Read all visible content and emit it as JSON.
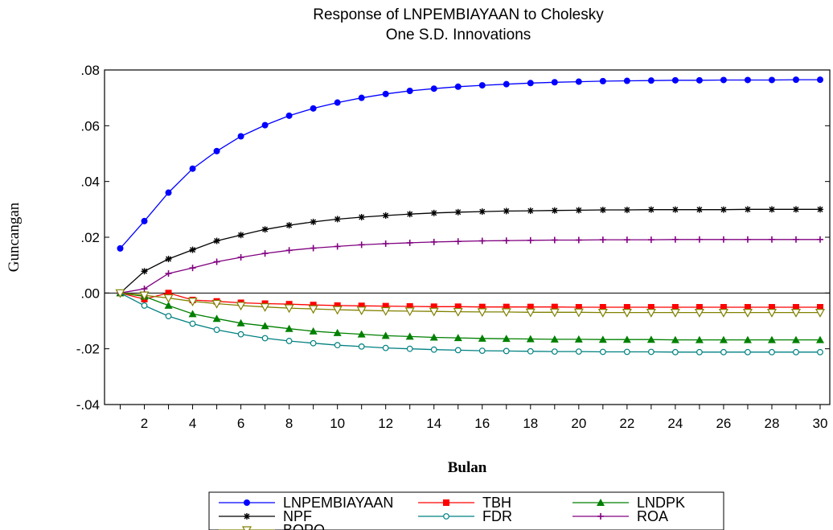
{
  "chart_data": {
    "type": "line",
    "title": [
      "Response of LNPEMBIAYAAN to Cholesky",
      "One S.D. Innovations"
    ],
    "xlabel": "Bulan",
    "ylabel": "Guncangan",
    "xlim": [
      1,
      30
    ],
    "ylim": [
      -0.04,
      0.08
    ],
    "x_ticks": [
      2,
      4,
      6,
      8,
      10,
      12,
      14,
      16,
      18,
      20,
      22,
      24,
      26,
      28,
      30
    ],
    "y_ticks": [
      {
        "value": 0.08,
        "label": ".08"
      },
      {
        "value": 0.06,
        "label": ".06"
      },
      {
        "value": 0.04,
        "label": ".04"
      },
      {
        "value": 0.02,
        "label": ".02"
      },
      {
        "value": 0.0,
        "label": ".00"
      },
      {
        "value": -0.02,
        "label": "-.02"
      },
      {
        "value": -0.04,
        "label": "-.04"
      }
    ],
    "zero_line": true,
    "grid": false,
    "legend_position": "bottom",
    "x": [
      1,
      2,
      3,
      4,
      5,
      6,
      7,
      8,
      9,
      10,
      11,
      12,
      13,
      14,
      15,
      16,
      17,
      18,
      19,
      20,
      21,
      22,
      23,
      24,
      25,
      26,
      27,
      28,
      29,
      30
    ],
    "series": [
      {
        "name": "LNPEMBIAYAAN",
        "color": "#0000ff",
        "marker": "circle-filled",
        "values": [
          0.016,
          0.0258,
          0.036,
          0.0446,
          0.0509,
          0.0562,
          0.0602,
          0.0636,
          0.0662,
          0.0683,
          0.07,
          0.0714,
          0.0725,
          0.0733,
          0.074,
          0.0745,
          0.0749,
          0.0753,
          0.0756,
          0.0758,
          0.076,
          0.0761,
          0.0762,
          0.0763,
          0.0763,
          0.0764,
          0.0764,
          0.0764,
          0.0765,
          0.0765
        ]
      },
      {
        "name": "TBH",
        "color": "#ff0000",
        "marker": "square-filled",
        "values": [
          0.0,
          -0.0022,
          0.0,
          -0.0025,
          -0.003,
          -0.0035,
          -0.0038,
          -0.004,
          -0.0043,
          -0.0045,
          -0.0046,
          -0.0047,
          -0.0048,
          -0.0049,
          -0.0049,
          -0.005,
          -0.005,
          -0.005,
          -0.005,
          -0.0051,
          -0.0051,
          -0.0051,
          -0.0051,
          -0.0051,
          -0.0051,
          -0.0051,
          -0.0051,
          -0.0051,
          -0.0051,
          -0.0051
        ]
      },
      {
        "name": "LNDPK",
        "color": "#008000",
        "marker": "triangle-filled",
        "values": [
          0.0,
          -0.0012,
          -0.0045,
          -0.0075,
          -0.0092,
          -0.0108,
          -0.0118,
          -0.0128,
          -0.0137,
          -0.0143,
          -0.0148,
          -0.0153,
          -0.0156,
          -0.0159,
          -0.0161,
          -0.0163,
          -0.0164,
          -0.0165,
          -0.0166,
          -0.0166,
          -0.0167,
          -0.0167,
          -0.0167,
          -0.0168,
          -0.0168,
          -0.0168,
          -0.0168,
          -0.0168,
          -0.0168,
          -0.0168
        ]
      },
      {
        "name": "NPF",
        "color": "#000000",
        "marker": "asterisk",
        "values": [
          0.0,
          0.0078,
          0.0122,
          0.0155,
          0.0187,
          0.0208,
          0.0228,
          0.0243,
          0.0255,
          0.0265,
          0.0272,
          0.0278,
          0.0283,
          0.0287,
          0.029,
          0.0292,
          0.0294,
          0.0295,
          0.0296,
          0.0297,
          0.0298,
          0.0298,
          0.0299,
          0.0299,
          0.0299,
          0.0299,
          0.03,
          0.03,
          0.03,
          0.03
        ]
      },
      {
        "name": "FDR",
        "color": "#008080",
        "marker": "circle-open",
        "values": [
          0.0,
          -0.0045,
          -0.0083,
          -0.011,
          -0.0132,
          -0.0148,
          -0.0162,
          -0.0172,
          -0.018,
          -0.0187,
          -0.0192,
          -0.0197,
          -0.02,
          -0.0203,
          -0.0205,
          -0.0207,
          -0.0208,
          -0.0209,
          -0.021,
          -0.021,
          -0.0211,
          -0.0211,
          -0.0211,
          -0.0212,
          -0.0212,
          -0.0212,
          -0.0212,
          -0.0212,
          -0.0212,
          -0.0212
        ]
      },
      {
        "name": "ROA",
        "color": "#800080",
        "marker": "plus",
        "values": [
          0.0,
          0.0015,
          0.007,
          0.009,
          0.0112,
          0.0128,
          0.0142,
          0.0153,
          0.0161,
          0.0167,
          0.0173,
          0.0177,
          0.018,
          0.0183,
          0.0185,
          0.0187,
          0.0188,
          0.0189,
          0.019,
          0.019,
          0.0191,
          0.0191,
          0.0191,
          0.0192,
          0.0192,
          0.0192,
          0.0192,
          0.0192,
          0.0192,
          0.0192
        ]
      },
      {
        "name": "BOPO",
        "color": "#808000",
        "marker": "triangle-down-open",
        "values": [
          0.0,
          -0.0008,
          -0.0018,
          -0.003,
          -0.0038,
          -0.0045,
          -0.005,
          -0.0054,
          -0.0057,
          -0.006,
          -0.0062,
          -0.0064,
          -0.0065,
          -0.0066,
          -0.0067,
          -0.0068,
          -0.0068,
          -0.0069,
          -0.0069,
          -0.0069,
          -0.007,
          -0.007,
          -0.007,
          -0.007,
          -0.007,
          -0.007,
          -0.007,
          -0.007,
          -0.007,
          -0.007
        ]
      }
    ],
    "legend_rows": [
      [
        "LNPEMBIAYAAN",
        "TBH",
        "LNDPK"
      ],
      [
        "NPF",
        "FDR",
        "ROA"
      ],
      [
        "BOPO"
      ]
    ]
  }
}
